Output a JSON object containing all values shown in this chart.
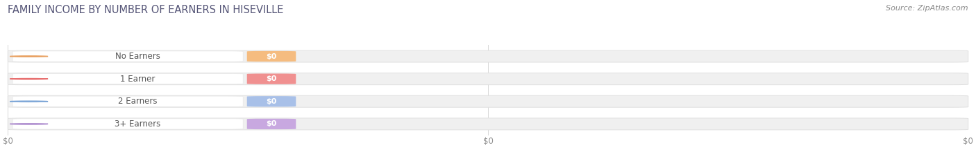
{
  "title": "FAMILY INCOME BY NUMBER OF EARNERS IN HISEVILLE",
  "title_color": "#555577",
  "title_fontsize": 10.5,
  "source_text": "Source: ZipAtlas.com",
  "categories": [
    "No Earners",
    "1 Earner",
    "2 Earners",
    "3+ Earners"
  ],
  "values": [
    0,
    0,
    0,
    0
  ],
  "bar_colors": [
    "#f5bc80",
    "#f09090",
    "#a8c0e8",
    "#c8a8e0"
  ],
  "circle_colors": [
    "#e8a060",
    "#e87070",
    "#80a8d8",
    "#b090d0"
  ],
  "label_bg_color": "#ffffff",
  "bar_bg_color": "#f0f0f0",
  "bar_bg_edge_color": "#e0e0e0",
  "category_label_color": "#555555",
  "tick_label_color": "#909090",
  "background_color": "#ffffff",
  "xtick_labels": [
    "$0",
    "$0",
    "$0"
  ],
  "xtick_positions": [
    0.0,
    0.5,
    1.0
  ],
  "figsize": [
    14.06,
    2.33
  ],
  "dpi": 100
}
